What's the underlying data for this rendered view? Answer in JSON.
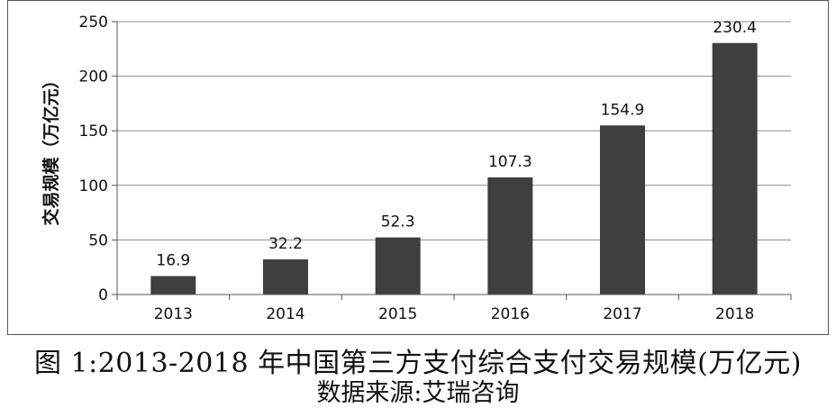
{
  "caption": {
    "title": "图 1:2013-2018 年中国第三方支付综合支付交易规模(万亿元)",
    "source": "数据来源:艾瑞咨询"
  },
  "chart_data": {
    "type": "bar",
    "categories": [
      "2013",
      "2014",
      "2015",
      "2016",
      "2017",
      "2018"
    ],
    "values": [
      16.9,
      32.2,
      52.3,
      107.3,
      154.9,
      230.4
    ],
    "data_labels": [
      "16.9",
      "32.2",
      "52.3",
      "107.3",
      "154.9",
      "230.4"
    ],
    "ylabel": "交易规模（万亿元）",
    "xlabel": "",
    "ylim": [
      0,
      250
    ],
    "yticks": [
      0,
      50,
      100,
      150,
      200,
      250
    ],
    "grid": true,
    "bar_color": "#3f3f3f",
    "grid_color": "#8c8c8c"
  }
}
